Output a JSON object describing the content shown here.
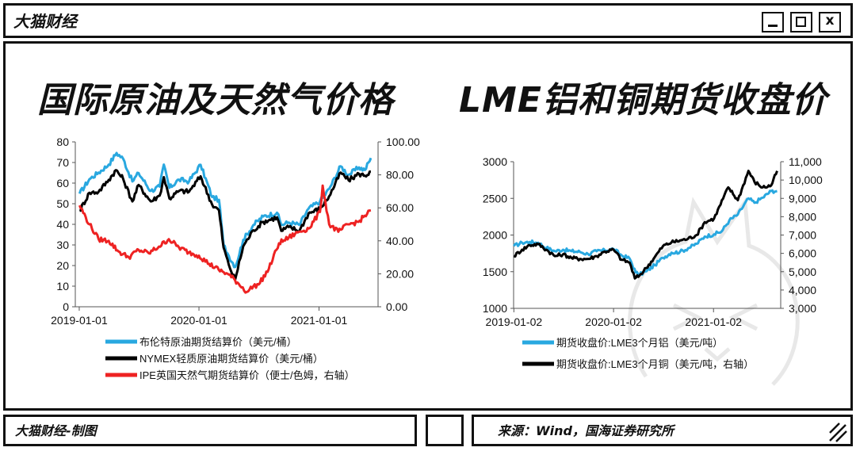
{
  "window": {
    "title": "大猫财经"
  },
  "footer": {
    "credit": "大猫财经-制图",
    "source": "来源：Wind，国海证券研究所"
  },
  "chart_data": [
    {
      "type": "line",
      "title": "国际原油及天然气价格",
      "x_tick_labels": [
        "2019-01-01",
        "2020-01-01",
        "2021-01-01"
      ],
      "y_left": {
        "range": [
          0,
          80
        ],
        "ticks": [
          "0",
          "10",
          "20",
          "30",
          "40",
          "50",
          "60",
          "70",
          "80"
        ]
      },
      "y_right": {
        "range": [
          0,
          100
        ],
        "ticks": [
          "0.00",
          "20.00",
          "40.00",
          "60.00",
          "80.00",
          "100.00"
        ]
      },
      "series": [
        {
          "name": "布伦特原油期货结算价（美元/桶）",
          "axis": "left",
          "color": "#29a8e0",
          "points": [
            [
              "2019-01-02",
              54.9
            ],
            [
              "2019-02-01",
              61.9
            ],
            [
              "2019-03-01",
              65.1
            ],
            [
              "2019-04-01",
              69.0
            ],
            [
              "2019-04-25",
              74.6
            ],
            [
              "2019-05-15",
              71.8
            ],
            [
              "2019-06-12",
              60.8
            ],
            [
              "2019-07-01",
              64.9
            ],
            [
              "2019-08-07",
              56.2
            ],
            [
              "2019-09-03",
              58.3
            ],
            [
              "2019-09-16",
              69.0
            ],
            [
              "2019-10-03",
              57.7
            ],
            [
              "2019-11-01",
              61.7
            ],
            [
              "2019-12-02",
              60.9
            ],
            [
              "2020-01-06",
              68.9
            ],
            [
              "2020-02-10",
              53.3
            ],
            [
              "2020-03-02",
              51.9
            ],
            [
              "2020-03-16",
              30.1
            ],
            [
              "2020-04-01",
              24.7
            ],
            [
              "2020-04-21",
              19.3
            ],
            [
              "2020-05-15",
              32.5
            ],
            [
              "2020-06-15",
              39.7
            ],
            [
              "2020-07-15",
              43.8
            ],
            [
              "2020-08-26",
              45.6
            ],
            [
              "2020-09-08",
              39.8
            ],
            [
              "2020-10-01",
              40.9
            ],
            [
              "2020-11-02",
              39.7
            ],
            [
              "2020-11-30",
              47.6
            ],
            [
              "2021-01-04",
              51.1
            ],
            [
              "2021-02-01",
              57.2
            ],
            [
              "2021-03-08",
              68.2
            ],
            [
              "2021-04-01",
              64.0
            ],
            [
              "2021-05-03",
              67.6
            ],
            [
              "2021-05-21",
              66.4
            ],
            [
              "2021-06-08",
              72.2
            ]
          ]
        },
        {
          "name": "NYMEX轻质原油期货结算价（美元/桶）",
          "axis": "left",
          "color": "#000000",
          "points": [
            [
              "2019-01-02",
              46.5
            ],
            [
              "2019-02-01",
              55.3
            ],
            [
              "2019-03-01",
              55.8
            ],
            [
              "2019-04-01",
              61.6
            ],
            [
              "2019-04-23",
              66.3
            ],
            [
              "2019-05-15",
              62.0
            ],
            [
              "2019-06-12",
              51.1
            ],
            [
              "2019-07-01",
              59.1
            ],
            [
              "2019-08-07",
              51.1
            ],
            [
              "2019-09-03",
              53.9
            ],
            [
              "2019-09-16",
              62.9
            ],
            [
              "2019-10-03",
              52.5
            ],
            [
              "2019-11-01",
              56.2
            ],
            [
              "2019-12-02",
              55.9
            ],
            [
              "2020-01-06",
              63.3
            ],
            [
              "2020-02-10",
              49.6
            ],
            [
              "2020-03-02",
              46.8
            ],
            [
              "2020-03-16",
              28.7
            ],
            [
              "2020-04-01",
              20.3
            ],
            [
              "2020-04-20",
              13.0
            ],
            [
              "2020-05-15",
              29.4
            ],
            [
              "2020-06-15",
              37.1
            ],
            [
              "2020-07-15",
              41.2
            ],
            [
              "2020-08-26",
              43.4
            ],
            [
              "2020-09-08",
              36.8
            ],
            [
              "2020-10-01",
              38.7
            ],
            [
              "2020-11-02",
              36.8
            ],
            [
              "2020-11-30",
              45.3
            ],
            [
              "2021-01-04",
              47.6
            ],
            [
              "2021-02-01",
              53.6
            ],
            [
              "2021-03-08",
              65.1
            ],
            [
              "2021-04-01",
              61.4
            ],
            [
              "2021-05-03",
              64.5
            ],
            [
              "2021-05-21",
              63.6
            ],
            [
              "2021-06-08",
              65.6
            ]
          ]
        },
        {
          "name": "IPE英国天然气期货结算价（便士/色姆，右轴）",
          "axis": "right",
          "color": "#ee2222",
          "points": [
            [
              "2019-01-02",
              61.5
            ],
            [
              "2019-02-01",
              50.0
            ],
            [
              "2019-03-01",
              41.0
            ],
            [
              "2019-04-01",
              40.0
            ],
            [
              "2019-05-01",
              33.5
            ],
            [
              "2019-06-01",
              30.0
            ],
            [
              "2019-07-01",
              34.5
            ],
            [
              "2019-08-01",
              32.5
            ],
            [
              "2019-09-01",
              36.5
            ],
            [
              "2019-10-01",
              41.0
            ],
            [
              "2019-11-01",
              36.0
            ],
            [
              "2019-12-01",
              33.0
            ],
            [
              "2020-01-01",
              31.0
            ],
            [
              "2020-02-01",
              26.0
            ],
            [
              "2020-03-01",
              22.5
            ],
            [
              "2020-04-01",
              19.5
            ],
            [
              "2020-05-01",
              14.0
            ],
            [
              "2020-05-26",
              9.0
            ],
            [
              "2020-06-15",
              12.5
            ],
            [
              "2020-07-01",
              13.5
            ],
            [
              "2020-08-01",
              23.0
            ],
            [
              "2020-09-01",
              38.5
            ],
            [
              "2020-10-01",
              42.0
            ],
            [
              "2020-11-01",
              45.5
            ],
            [
              "2020-12-01",
              47.5
            ],
            [
              "2021-01-04",
              57.5
            ],
            [
              "2021-01-12",
              73.5
            ],
            [
              "2021-02-01",
              50.0
            ],
            [
              "2021-03-01",
              45.5
            ],
            [
              "2021-04-01",
              50.0
            ],
            [
              "2021-05-01",
              51.5
            ],
            [
              "2021-06-08",
              58.5
            ]
          ]
        }
      ]
    },
    {
      "type": "line",
      "title": "LME铝和铜期货收盘价",
      "x_tick_labels": [
        "2019-01-02",
        "2020-01-02",
        "2021-01-02"
      ],
      "y_left": {
        "range": [
          1000,
          3000
        ],
        "ticks": [
          "1000",
          "1500",
          "2000",
          "2500",
          "3000"
        ]
      },
      "y_right": {
        "range": [
          3000,
          11000
        ],
        "ticks": [
          "3,000",
          "4,000",
          "5,000",
          "6,000",
          "7,000",
          "8,000",
          "9,000",
          "10,000",
          "11,000"
        ]
      },
      "series": [
        {
          "name": "期货收盘价:LME3个月铝（美元/吨）",
          "axis": "left",
          "color": "#29a8e0",
          "points": [
            [
              "2019-01-02",
              1850
            ],
            [
              "2019-02-01",
              1895
            ],
            [
              "2019-03-01",
              1905
            ],
            [
              "2019-04-01",
              1895
            ],
            [
              "2019-05-01",
              1825
            ],
            [
              "2019-06-01",
              1780
            ],
            [
              "2019-07-01",
              1800
            ],
            [
              "2019-08-01",
              1780
            ],
            [
              "2019-09-01",
              1770
            ],
            [
              "2019-10-01",
              1740
            ],
            [
              "2019-11-01",
              1780
            ],
            [
              "2019-12-01",
              1790
            ],
            [
              "2020-01-02",
              1810
            ],
            [
              "2020-02-01",
              1720
            ],
            [
              "2020-03-01",
              1680
            ],
            [
              "2020-03-23",
              1490
            ],
            [
              "2020-04-06",
              1460
            ],
            [
              "2020-05-01",
              1505
            ],
            [
              "2020-06-01",
              1590
            ],
            [
              "2020-07-01",
              1690
            ],
            [
              "2020-08-01",
              1760
            ],
            [
              "2020-09-01",
              1770
            ],
            [
              "2020-10-01",
              1820
            ],
            [
              "2020-11-01",
              1880
            ],
            [
              "2020-12-01",
              1980
            ],
            [
              "2021-01-04",
              2010
            ],
            [
              "2021-02-01",
              2050
            ],
            [
              "2021-03-01",
              2200
            ],
            [
              "2021-04-01",
              2280
            ],
            [
              "2021-05-10",
              2500
            ],
            [
              "2021-06-01",
              2440
            ],
            [
              "2021-07-01",
              2510
            ],
            [
              "2021-08-01",
              2600
            ],
            [
              "2021-08-23",
              2600
            ]
          ]
        },
        {
          "name": "期货收盘价:LME3个月铜（美元/吨，右轴）",
          "axis": "right",
          "color": "#000000",
          "points": [
            [
              "2019-01-02",
              5850
            ],
            [
              "2019-02-01",
              6200
            ],
            [
              "2019-03-01",
              6450
            ],
            [
              "2019-04-01",
              6500
            ],
            [
              "2019-05-01",
              6200
            ],
            [
              "2019-06-01",
              5850
            ],
            [
              "2019-07-01",
              5950
            ],
            [
              "2019-08-01",
              5750
            ],
            [
              "2019-09-01",
              5700
            ],
            [
              "2019-10-01",
              5700
            ],
            [
              "2019-11-01",
              5850
            ],
            [
              "2019-12-01",
              6100
            ],
            [
              "2020-01-02",
              6200
            ],
            [
              "2020-02-01",
              5650
            ],
            [
              "2020-03-01",
              5500
            ],
            [
              "2020-03-20",
              4630
            ],
            [
              "2020-04-06",
              4800
            ],
            [
              "2020-05-01",
              5200
            ],
            [
              "2020-06-01",
              5800
            ],
            [
              "2020-07-01",
              6400
            ],
            [
              "2020-08-01",
              6600
            ],
            [
              "2020-09-01",
              6700
            ],
            [
              "2020-10-01",
              6800
            ],
            [
              "2020-11-01",
              7000
            ],
            [
              "2020-12-01",
              7700
            ],
            [
              "2021-01-04",
              7900
            ],
            [
              "2021-02-25",
              9600
            ],
            [
              "2021-04-01",
              8900
            ],
            [
              "2021-05-10",
              10500
            ],
            [
              "2021-06-01",
              9900
            ],
            [
              "2021-07-01",
              9600
            ],
            [
              "2021-08-01",
              9700
            ],
            [
              "2021-08-23",
              10500
            ]
          ]
        }
      ]
    }
  ]
}
